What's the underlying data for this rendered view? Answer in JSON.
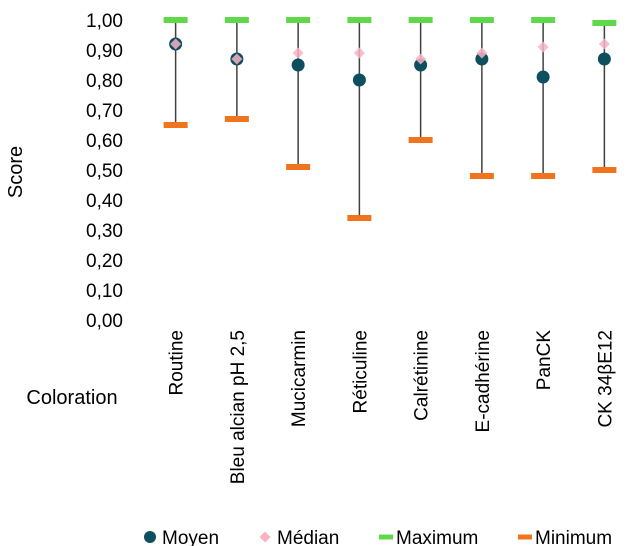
{
  "chart_data": {
    "type": "scatter",
    "xlabel": "Coloration",
    "ylabel": "Score",
    "ylim": [
      0,
      1
    ],
    "y_ticks": [
      "0,00",
      "0,10",
      "0,20",
      "0,30",
      "0,40",
      "0,50",
      "0,60",
      "0,70",
      "0,80",
      "0,90",
      "1,00"
    ],
    "categories": [
      "Routine",
      "Bleu alcian pH 2,5",
      "Mucicarmin",
      "Réticuline",
      "Calrétinine",
      "E-cadhérine",
      "PanCK",
      "CK 34βE12"
    ],
    "series": [
      {
        "name": "Moyen",
        "marker": "circle",
        "color": "#0e4f5f",
        "values": [
          0.92,
          0.87,
          0.85,
          0.8,
          0.85,
          0.87,
          0.81,
          0.87
        ]
      },
      {
        "name": "Médian",
        "marker": "diamond",
        "color": "#f7b3c4",
        "values": [
          0.92,
          0.87,
          0.89,
          0.89,
          0.87,
          0.89,
          0.91,
          0.92
        ]
      },
      {
        "name": "Maximum",
        "marker": "dash",
        "color": "#5fd94a",
        "values": [
          1.0,
          1.0,
          1.0,
          1.0,
          1.0,
          1.0,
          1.0,
          0.99
        ]
      },
      {
        "name": "Minimum",
        "marker": "dash",
        "color": "#f0731e",
        "values": [
          0.65,
          0.67,
          0.51,
          0.34,
          0.6,
          0.48,
          0.48,
          0.5
        ]
      }
    ],
    "legend_position": "bottom",
    "grid": false
  }
}
